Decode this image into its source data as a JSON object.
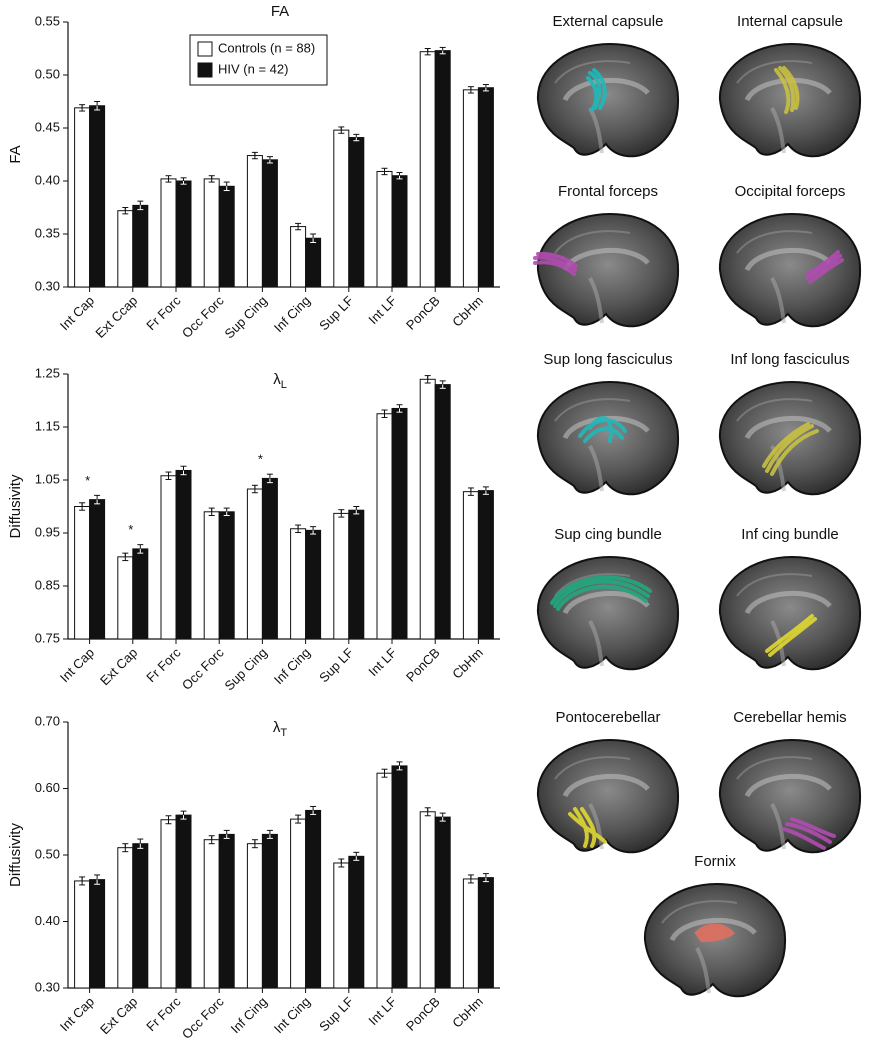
{
  "chart_data": [
    {
      "type": "bar",
      "title": "FA",
      "y_label": "FA",
      "categories": [
        "Int Cap",
        "Ext Ccap",
        "Fr Forc",
        "Occ Forc",
        "Sup Cing",
        "Inf Cing",
        "Sup LF",
        "Int LF",
        "PonCB",
        "CbHm"
      ],
      "series": [
        {
          "name": "Controls (n = 88)",
          "color": "#ffffff",
          "values": [
            0.469,
            0.372,
            0.402,
            0.402,
            0.424,
            0.357,
            0.448,
            0.409,
            0.522,
            0.486
          ],
          "errors": [
            0.003,
            0.003,
            0.003,
            0.003,
            0.003,
            0.003,
            0.003,
            0.003,
            0.003,
            0.003
          ]
        },
        {
          "name": "HIV (n = 42)",
          "color": "#111111",
          "values": [
            0.471,
            0.377,
            0.4,
            0.395,
            0.42,
            0.346,
            0.441,
            0.405,
            0.523,
            0.488
          ],
          "errors": [
            0.004,
            0.004,
            0.003,
            0.004,
            0.003,
            0.004,
            0.003,
            0.003,
            0.003,
            0.003
          ]
        }
      ],
      "ylim": [
        0.3,
        0.55
      ],
      "yticks": [
        {
          "value": 0.3,
          "label": "0.30"
        },
        0.35,
        {
          "value": 0.4,
          "label": "0.40"
        },
        0.45,
        {
          "value": 0.5,
          "label": "0.50"
        },
        0.55
      ],
      "legend": "upper-left"
    },
    {
      "type": "bar",
      "title": "λ",
      "title_subscript": "L",
      "y_label": "Diffusivity",
      "categories": [
        "Int Cap",
        "Ext Cap",
        "Fr Forc",
        "Occ Forc",
        "Sup Cing",
        "Inf Cing",
        "Sup LF",
        "Int LF",
        "PonCB",
        "CbHm"
      ],
      "series": [
        {
          "color": "#ffffff",
          "values": [
            1.0,
            0.905,
            1.058,
            0.99,
            1.033,
            0.958,
            0.987,
            1.175,
            1.24,
            1.028
          ],
          "errors": [
            0.007,
            0.007,
            0.007,
            0.007,
            0.007,
            0.007,
            0.007,
            0.007,
            0.007,
            0.007
          ]
        },
        {
          "color": "#111111",
          "values": [
            1.013,
            0.92,
            1.068,
            0.99,
            1.053,
            0.955,
            0.993,
            1.185,
            1.23,
            1.03
          ],
          "errors": [
            0.008,
            0.008,
            0.008,
            0.007,
            0.008,
            0.007,
            0.007,
            0.007,
            0.007,
            0.007
          ]
        }
      ],
      "annotations": [
        {
          "label": "*",
          "category": "Int Cap"
        },
        {
          "label": "*",
          "category": "Ext Cap"
        },
        {
          "label": "*",
          "category": "Sup Cing"
        }
      ],
      "ylim": [
        0.75,
        1.25
      ],
      "yticks": [
        0.75,
        0.85,
        0.95,
        1.05,
        1.15,
        1.25
      ]
    },
    {
      "type": "bar",
      "title": "λ",
      "title_subscript": "T",
      "y_label": "Diffusivity",
      "categories": [
        "Int Cap",
        "Ext Cap",
        "Fr Forc",
        "Occ Forc",
        "Inf Cing",
        "Int Cing",
        "Sup LF",
        "Int LF",
        "PonCB",
        "CbHm"
      ],
      "series": [
        {
          "color": "#ffffff",
          "values": [
            0.461,
            0.511,
            0.553,
            0.523,
            0.517,
            0.554,
            0.488,
            0.623,
            0.565,
            0.464
          ],
          "errors": [
            0.006,
            0.006,
            0.006,
            0.006,
            0.006,
            0.006,
            0.006,
            0.006,
            0.006,
            0.006
          ]
        },
        {
          "color": "#111111",
          "values": [
            0.463,
            0.517,
            0.56,
            0.531,
            0.531,
            0.567,
            0.498,
            0.634,
            0.557,
            0.466
          ],
          "errors": [
            0.007,
            0.007,
            0.006,
            0.006,
            0.006,
            0.006,
            0.006,
            0.006,
            0.006,
            0.006
          ]
        }
      ],
      "ylim": [
        0.3,
        0.7
      ],
      "yticks": [
        {
          "value": 0.3,
          "label": "0.30"
        },
        {
          "value": 0.4,
          "label": "0.40"
        },
        {
          "value": 0.5,
          "label": "0.50"
        },
        {
          "value": 0.6,
          "label": "0.60"
        },
        {
          "value": 0.7,
          "label": "0.70"
        }
      ]
    }
  ],
  "images": [
    {
      "label": "External capsule",
      "color": "#1fb8b8"
    },
    {
      "label": "Internal capsule",
      "color": "#c8c040"
    },
    {
      "label": "Frontal forceps",
      "color": "#b04cb0"
    },
    {
      "label": "Occipital forceps",
      "color": "#b04cb0"
    },
    {
      "label": "Sup long fasciculus",
      "color": "#1fb8b8"
    },
    {
      "label": "Inf long fasciculus",
      "color": "#c8c040"
    },
    {
      "label": "Sup cing bundle",
      "color": "#20a880"
    },
    {
      "label": "Inf cing bundle",
      "color": "#e0d830"
    },
    {
      "label": "Pontocerebellar",
      "color": "#e0d830"
    },
    {
      "label": "Cerebellar hemis",
      "color": "#b04cb0"
    },
    {
      "label": "Fornix",
      "color": "#e07060"
    }
  ]
}
